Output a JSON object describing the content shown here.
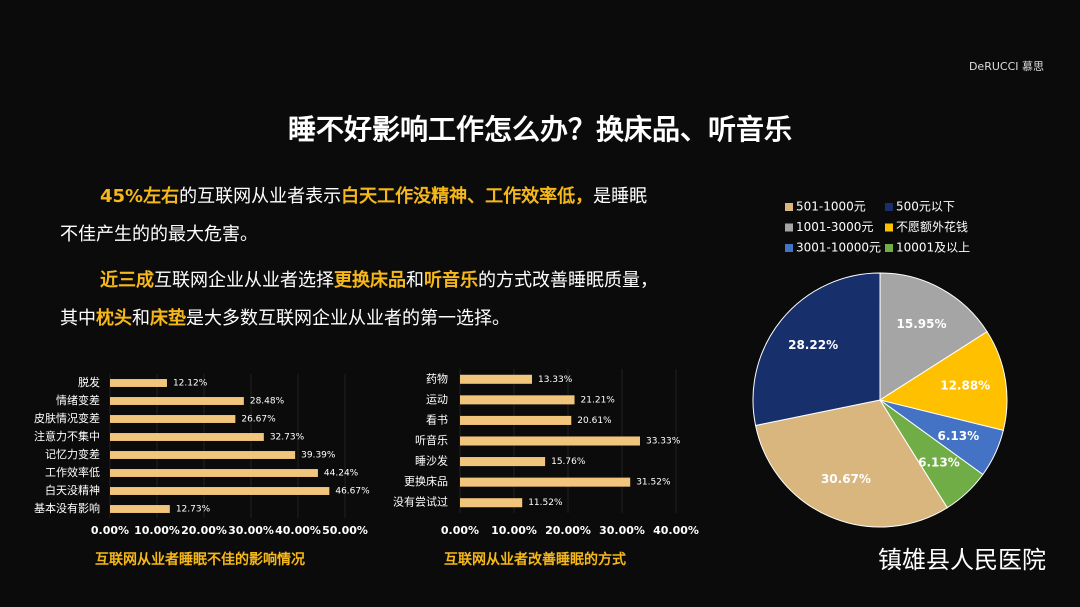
{
  "header": {
    "title": "睡不好影响工作怎么办？换床品、听音乐",
    "logo": "DeRUCCI 慕思",
    "watermark": "镇雄县人民医院",
    "paragraphs": [
      [
        {
          "text": "45%左右",
          "highlight": true
        },
        {
          "text": "的互联网从业者表示",
          "highlight": false
        },
        {
          "text": "白天工作没精神、工作效率低，",
          "highlight": true
        },
        {
          "text": "是睡眠不佳产生的的最大危害。",
          "highlight": false
        }
      ],
      [
        {
          "text": "近三成",
          "highlight": true
        },
        {
          "text": "互联网企业从业者选择",
          "highlight": false
        },
        {
          "text": "更换床品",
          "highlight": true
        },
        {
          "text": "和",
          "highlight": false
        },
        {
          "text": "听音乐",
          "highlight": true
        },
        {
          "text": "的方式改善睡眠质量，其中",
          "highlight": false
        },
        {
          "text": "枕头",
          "highlight": true
        },
        {
          "text": "和",
          "highlight": false
        },
        {
          "text": "床垫",
          "highlight": true
        },
        {
          "text": "是大多数互联网企业从业者的第一选择。",
          "highlight": false
        }
      ]
    ]
  },
  "chart_data": [
    {
      "type": "bar",
      "orientation": "horizontal",
      "title": "互联网从业者睡眠不佳的影响情况",
      "color": "#f2c57c",
      "categories": [
        "脱发",
        "情绪变差",
        "皮肤情况变差",
        "注意力不集中",
        "记忆力变差",
        "工作效率低",
        "白天没精神",
        "基本没有影响"
      ],
      "values": [
        12.12,
        28.48,
        26.67,
        32.73,
        39.39,
        44.24,
        46.67,
        12.73
      ],
      "value_labels": [
        "12.12%",
        "28.48%",
        "26.67%",
        "32.73%",
        "39.39%",
        "44.24%",
        "46.67%",
        "12.73%"
      ],
      "xlim": [
        0,
        50
      ],
      "xticks": [
        {
          "value": 0,
          "label": "0.00%"
        },
        {
          "value": 10,
          "label": "10.00%"
        },
        {
          "value": 20,
          "label": "20.00%"
        },
        {
          "value": 30,
          "label": "30.00%"
        },
        {
          "value": 40,
          "label": "40.00%"
        },
        {
          "value": 50,
          "label": "50.00%"
        }
      ]
    },
    {
      "type": "bar",
      "orientation": "horizontal",
      "title": "互联网从业者改善睡眠的方式",
      "color": "#f2c57c",
      "categories": [
        "药物",
        "运动",
        "看书",
        "听音乐",
        "睡沙发",
        "更换床品",
        "没有尝试过"
      ],
      "values": [
        13.33,
        21.21,
        20.61,
        33.33,
        15.76,
        31.52,
        11.52
      ],
      "value_labels": [
        "13.33%",
        "21.21%",
        "20.61%",
        "33.33%",
        "15.76%",
        "31.52%",
        "11.52%"
      ],
      "xlim": [
        0,
        40
      ],
      "xticks": [
        {
          "value": 0,
          "label": "0.00%"
        },
        {
          "value": 10,
          "label": "10.00%"
        },
        {
          "value": 20,
          "label": "20.00%"
        },
        {
          "value": 30,
          "label": "30.00%"
        },
        {
          "value": 40,
          "label": "40.00%"
        }
      ]
    },
    {
      "type": "pie",
      "categories": [
        "501-1000元",
        "500元以下",
        "1001-3000元",
        "不愿额外花钱",
        "3001-10000元",
        "10001及以上"
      ],
      "values": [
        30.67,
        28.22,
        15.95,
        12.88,
        6.13,
        6.13
      ],
      "value_labels": [
        "30.67%",
        "28.22%",
        "15.95%",
        "12.88%",
        "6.13%",
        "6.13%"
      ],
      "colors": [
        "#d8b67e",
        "#17306b",
        "#a5a5a5",
        "#ffc000",
        "#4472c4",
        "#70ad47"
      ]
    }
  ]
}
